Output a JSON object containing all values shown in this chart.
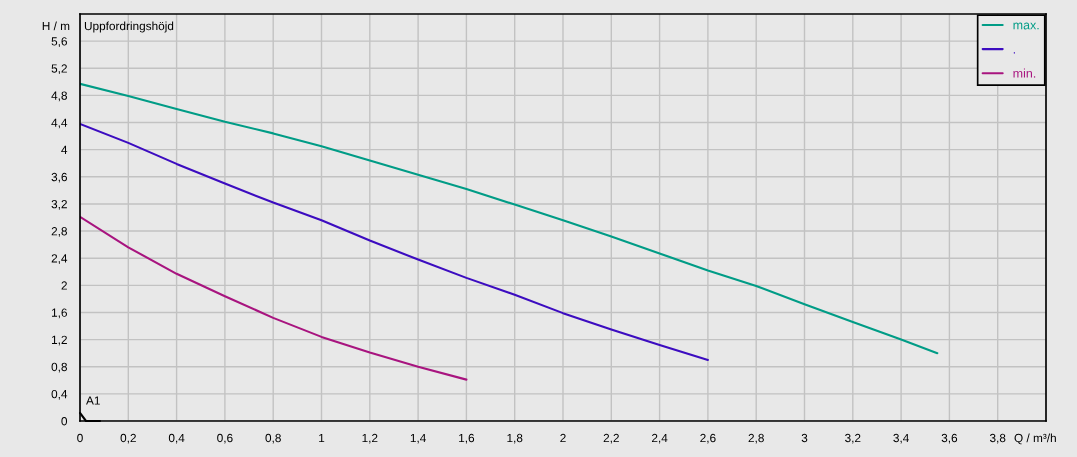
{
  "chart_data": {
    "type": "line",
    "title": "Uppfordringshöjd",
    "xlabel": "Q / m³/h",
    "ylabel": "H / m",
    "annotations": [
      "A1"
    ],
    "series": [
      {
        "name": "max.",
        "color": "#009c86",
        "x": [
          0,
          0.2,
          0.4,
          0.6,
          0.8,
          1.0,
          1.2,
          1.4,
          1.6,
          1.8,
          2.0,
          2.2,
          2.4,
          2.6,
          2.8,
          3.0,
          3.2,
          3.4,
          3.55
        ],
        "values": [
          4.97,
          4.79,
          4.6,
          4.41,
          4.24,
          4.05,
          3.84,
          3.63,
          3.42,
          3.19,
          2.96,
          2.72,
          2.47,
          2.22,
          1.99,
          1.72,
          1.46,
          1.2,
          1.0
        ]
      },
      {
        "name": ".",
        "color": "#3c0cc0",
        "x": [
          0,
          0.2,
          0.4,
          0.6,
          0.8,
          1.0,
          1.2,
          1.4,
          1.6,
          1.8,
          2.0,
          2.2,
          2.4,
          2.6
        ],
        "values": [
          4.38,
          4.1,
          3.79,
          3.5,
          3.22,
          2.96,
          2.66,
          2.38,
          2.11,
          1.86,
          1.59,
          1.35,
          1.12,
          0.9
        ]
      },
      {
        "name": "min.",
        "color": "#a8147f",
        "x": [
          0,
          0.2,
          0.4,
          0.6,
          0.8,
          1.0,
          1.2,
          1.4,
          1.6
        ],
        "values": [
          3.01,
          2.56,
          2.17,
          1.84,
          1.52,
          1.24,
          1.01,
          0.8,
          0.61
        ]
      }
    ],
    "xlim": [
      0,
      4
    ],
    "ylim": [
      0,
      6
    ],
    "xticks": [
      0,
      {
        "value": 0.2,
        "label": "0,2"
      },
      {
        "value": 0.4,
        "label": "0,4"
      },
      {
        "value": 0.6,
        "label": "0,6"
      },
      {
        "value": 0.8,
        "label": "0,8"
      },
      1,
      {
        "value": 1.2,
        "label": "1,2"
      },
      {
        "value": 1.4,
        "label": "1,4"
      },
      {
        "value": 1.6,
        "label": "1,6"
      },
      {
        "value": 1.8,
        "label": "1,8"
      },
      2,
      {
        "value": 2.2,
        "label": "2,2"
      },
      {
        "value": 2.4,
        "label": "2,4"
      },
      {
        "value": 2.6,
        "label": "2,6"
      },
      {
        "value": 2.8,
        "label": "2,8"
      },
      3,
      {
        "value": 3.2,
        "label": "3,2"
      },
      {
        "value": 3.4,
        "label": "3,4"
      },
      {
        "value": 3.6,
        "label": "3,6"
      },
      {
        "value": 3.8,
        "label": "3,8"
      }
    ],
    "yticks": [
      0,
      {
        "value": 0.4,
        "label": "0,4"
      },
      {
        "value": 0.8,
        "label": "0,8"
      },
      {
        "value": 1.2,
        "label": "1,2"
      },
      {
        "value": 1.6,
        "label": "1,6"
      },
      2,
      {
        "value": 2.4,
        "label": "2,4"
      },
      {
        "value": 2.8,
        "label": "2,8"
      },
      {
        "value": 3.2,
        "label": "3,2"
      },
      {
        "value": 3.6,
        "label": "3,6"
      },
      4,
      {
        "value": 4.4,
        "label": "4,4"
      },
      {
        "value": 4.8,
        "label": "4,8"
      },
      {
        "value": 5.2,
        "label": "5,2"
      },
      {
        "value": 5.6,
        "label": "5,6"
      }
    ],
    "grid": true,
    "legend": "top right",
    "line_style": "solid"
  }
}
